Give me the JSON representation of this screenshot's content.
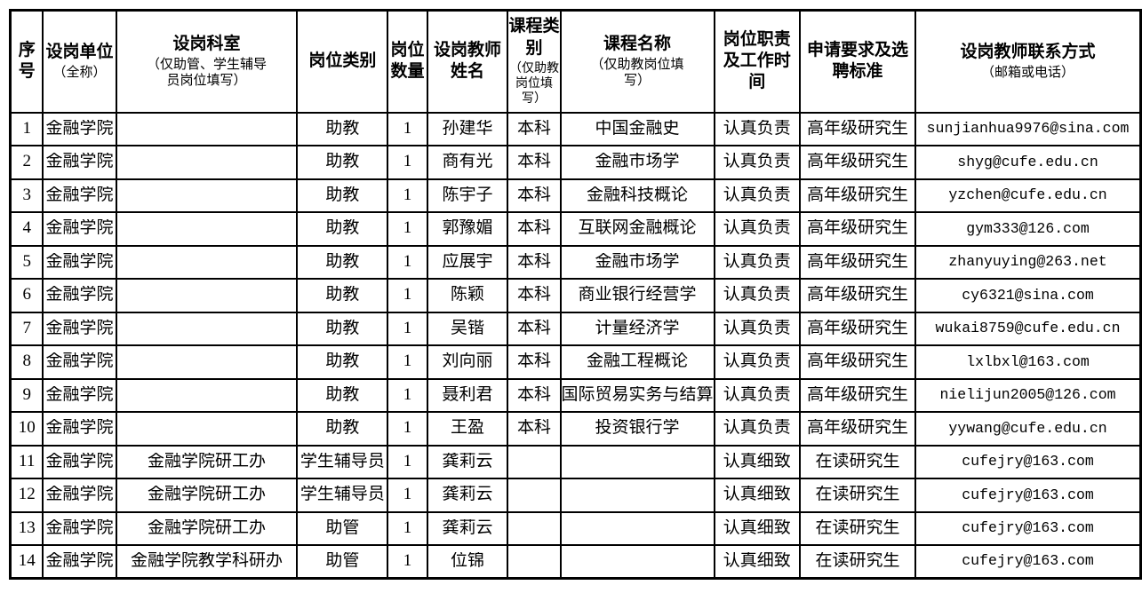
{
  "colors": {
    "background": "#ffffff",
    "border": "#000000",
    "text": "#000000"
  },
  "table": {
    "columns": [
      {
        "title": "序号"
      },
      {
        "title": "设岗单位",
        "sub": "（全称）"
      },
      {
        "title": "设岗科室",
        "sub": "（仅助管、学生辅导员岗位填写）"
      },
      {
        "title": "岗位类别"
      },
      {
        "title": "岗位数量"
      },
      {
        "title": "设岗教师姓名"
      },
      {
        "title": "课程类别",
        "sub": "（仅助教岗位填写）"
      },
      {
        "title": "课程名称",
        "sub": "（仅助教岗位填写）"
      },
      {
        "title": "岗位职责及工作时间"
      },
      {
        "title": "申请要求及选聘标准"
      },
      {
        "title": "设岗教师联系方式",
        "sub": "（邮箱或电话）"
      }
    ],
    "rows": [
      {
        "no": "1",
        "unit": "金融学院",
        "dept": "",
        "type": "助教",
        "qty": "1",
        "teacher": "孙建华",
        "cat": "本科",
        "course": "中国金融史",
        "duty": "认真负责",
        "req": "高年级研究生",
        "email": "sunjianhua9976@sina.com"
      },
      {
        "no": "2",
        "unit": "金融学院",
        "dept": "",
        "type": "助教",
        "qty": "1",
        "teacher": "商有光",
        "cat": "本科",
        "course": "金融市场学",
        "duty": "认真负责",
        "req": "高年级研究生",
        "email": "shyg@cufe.edu.cn"
      },
      {
        "no": "3",
        "unit": "金融学院",
        "dept": "",
        "type": "助教",
        "qty": "1",
        "teacher": "陈宇子",
        "cat": "本科",
        "course": "金融科技概论",
        "duty": "认真负责",
        "req": "高年级研究生",
        "email": "yzchen@cufe.edu.cn"
      },
      {
        "no": "4",
        "unit": "金融学院",
        "dept": "",
        "type": "助教",
        "qty": "1",
        "teacher": "郭豫媚",
        "cat": "本科",
        "course": "互联网金融概论",
        "duty": "认真负责",
        "req": "高年级研究生",
        "email": "gym333@126.com"
      },
      {
        "no": "5",
        "unit": "金融学院",
        "dept": "",
        "type": "助教",
        "qty": "1",
        "teacher": "应展宇",
        "cat": "本科",
        "course": "金融市场学",
        "duty": "认真负责",
        "req": "高年级研究生",
        "email": "zhanyuying@263.net"
      },
      {
        "no": "6",
        "unit": "金融学院",
        "dept": "",
        "type": "助教",
        "qty": "1",
        "teacher": "陈颖",
        "cat": "本科",
        "course": "商业银行经营学",
        "duty": "认真负责",
        "req": "高年级研究生",
        "email": "cy6321@sina.com"
      },
      {
        "no": "7",
        "unit": "金融学院",
        "dept": "",
        "type": "助教",
        "qty": "1",
        "teacher": "吴锴",
        "cat": "本科",
        "course": "计量经济学",
        "duty": "认真负责",
        "req": "高年级研究生",
        "email": "wukai8759@cufe.edu.cn"
      },
      {
        "no": "8",
        "unit": "金融学院",
        "dept": "",
        "type": "助教",
        "qty": "1",
        "teacher": "刘向丽",
        "cat": "本科",
        "course": "金融工程概论",
        "duty": "认真负责",
        "req": "高年级研究生",
        "email": "lxlbxl@163.com"
      },
      {
        "no": "9",
        "unit": "金融学院",
        "dept": "",
        "type": "助教",
        "qty": "1",
        "teacher": "聂利君",
        "cat": "本科",
        "course": "国际贸易实务与结算",
        "duty": "认真负责",
        "req": "高年级研究生",
        "email": "nielijun2005@126.com"
      },
      {
        "no": "10",
        "unit": "金融学院",
        "dept": "",
        "type": "助教",
        "qty": "1",
        "teacher": "王盈",
        "cat": "本科",
        "course": "投资银行学",
        "duty": "认真负责",
        "req": "高年级研究生",
        "email": "yywang@cufe.edu.cn"
      },
      {
        "no": "11",
        "unit": "金融学院",
        "dept": "金融学院研工办",
        "type": "学生辅导员",
        "qty": "1",
        "teacher": "龚莉云",
        "cat": "",
        "course": "",
        "duty": "认真细致",
        "req": "在读研究生",
        "email": "cufejry@163.com"
      },
      {
        "no": "12",
        "unit": "金融学院",
        "dept": "金融学院研工办",
        "type": "学生辅导员",
        "qty": "1",
        "teacher": "龚莉云",
        "cat": "",
        "course": "",
        "duty": "认真细致",
        "req": "在读研究生",
        "email": "cufejry@163.com"
      },
      {
        "no": "13",
        "unit": "金融学院",
        "dept": "金融学院研工办",
        "type": "助管",
        "qty": "1",
        "teacher": "龚莉云",
        "cat": "",
        "course": "",
        "duty": "认真细致",
        "req": "在读研究生",
        "email": "cufejry@163.com"
      },
      {
        "no": "14",
        "unit": "金融学院",
        "dept": "金融学院教学科研办",
        "type": "助管",
        "qty": "1",
        "teacher": "位锦",
        "cat": "",
        "course": "",
        "duty": "认真细致",
        "req": "在读研究生",
        "email": "cufejry@163.com"
      }
    ]
  }
}
